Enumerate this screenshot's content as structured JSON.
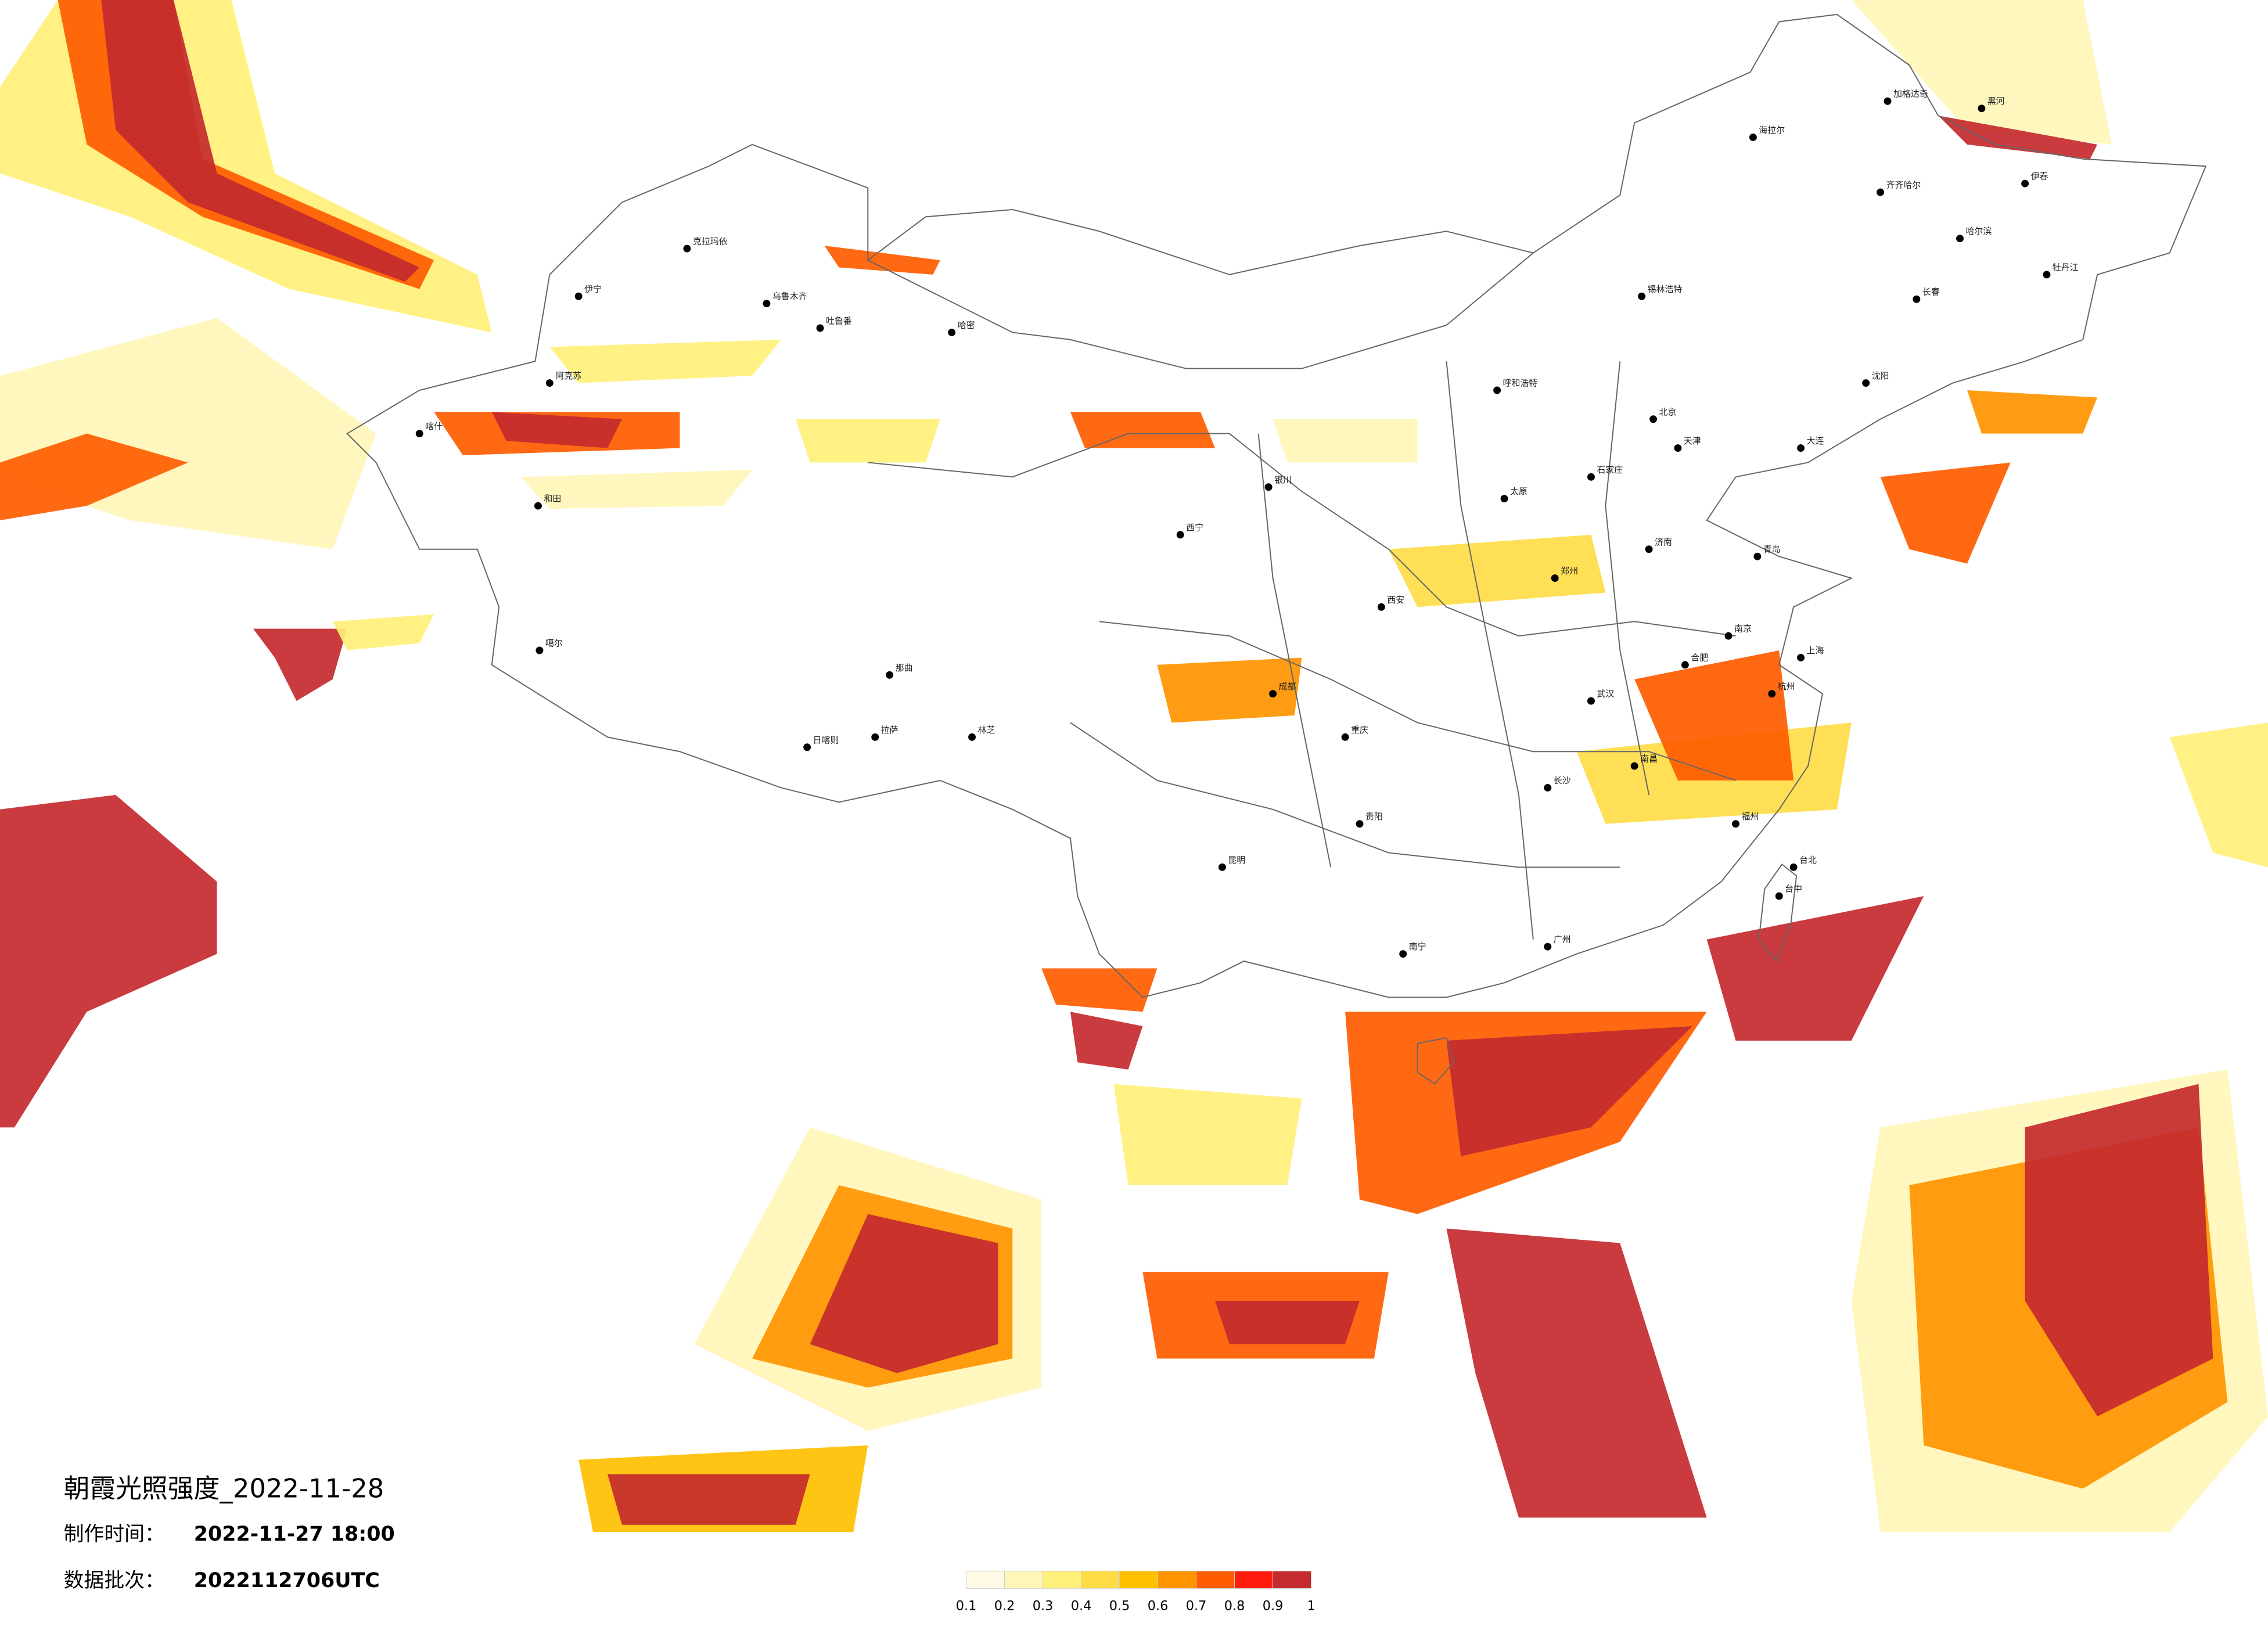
{
  "title": "朝霞光照强度_2022-11-28",
  "production_time": {
    "label": "制作时间：",
    "value": "2022-11-27 18:00"
  },
  "batch": {
    "label": "数据批次：",
    "value": "2022112706UTC"
  },
  "legend": {
    "ticks": [
      0.1,
      0.2,
      0.3,
      0.4,
      0.5,
      0.6,
      0.7,
      0.8,
      0.9,
      1
    ],
    "colors": [
      "#fffbe6",
      "#fff6b8",
      "#fff07a",
      "#ffdc46",
      "#ffc000",
      "#ff9400",
      "#ff5c00",
      "#ff1c0c",
      "#c42a2e"
    ]
  },
  "cities": [
    "克拉玛依",
    "乌鲁木齐",
    "吐鲁番",
    "哈密",
    "伊宁",
    "阿克苏",
    "喀什",
    "和田",
    "噶尔",
    "日喀则",
    "拉萨",
    "那曲",
    "林芝",
    "西宁",
    "银川",
    "呼和浩特",
    "北京",
    "天津",
    "石家庄",
    "太原",
    "济南",
    "郑州",
    "西安",
    "成都",
    "重庆",
    "贵阳",
    "昆明",
    "南宁",
    "广州",
    "长沙",
    "武汉",
    "南昌",
    "合肥",
    "南京",
    "上海",
    "杭州",
    "福州",
    "台北",
    "台中",
    "海拉尔",
    "齐齐哈尔",
    "哈尔滨",
    "长春",
    "沈阳",
    "大连",
    "青岛",
    "锡林浩特",
    "伊春",
    "牡丹江",
    "加格达奇",
    "黑河"
  ]
}
